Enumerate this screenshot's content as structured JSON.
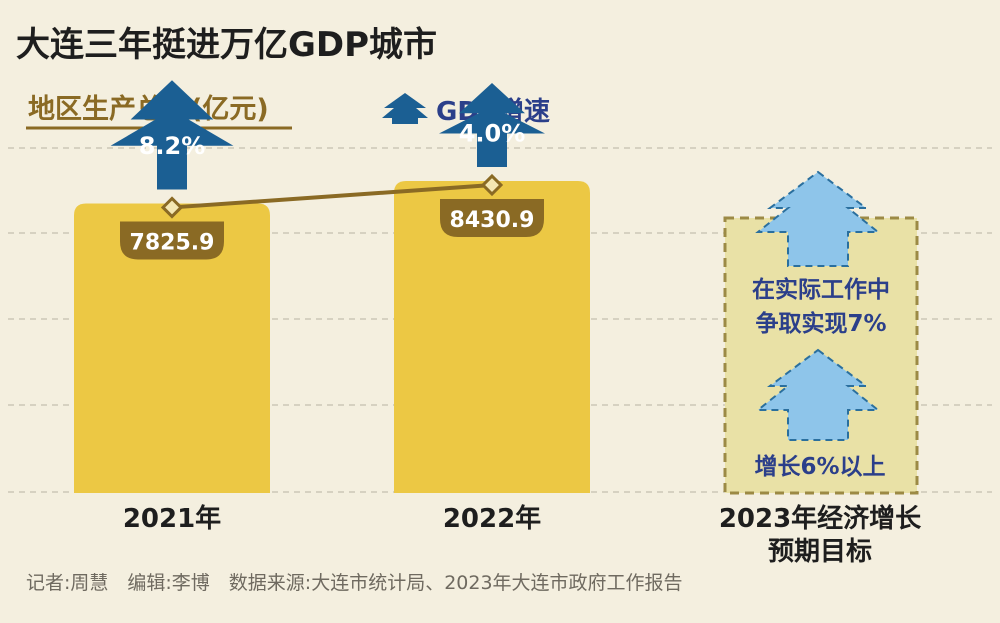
{
  "colors": {
    "background": "#f4efdf",
    "bar": "#ecc844",
    "line": "#8a6a24",
    "label_box": "#8a6a24",
    "arrow_dark": "#1b5f93",
    "arrow_light": "#2f8ac3",
    "target_arrow": "#8ec5ea",
    "target_box": "#e9e1a6",
    "target_border": "#9c8a45",
    "text_dark": "#1e1e1e",
    "text_blue": "#2b3f8a",
    "legend_text": "#8a6a24",
    "source_text": "#6f6a60"
  },
  "title": "大连三年挺进万亿GDP城市",
  "legend": {
    "bar_label": "地区生产总值(亿元)",
    "arrow_label": "GDP增速"
  },
  "chart_data": {
    "type": "bar",
    "categories": [
      "2021年",
      "2022年"
    ],
    "series": [
      {
        "name": "地区生产总值(亿元)",
        "values": [
          7825.9,
          8430.9
        ],
        "labels": [
          "7825.9",
          "8430.9"
        ]
      },
      {
        "name": "GDP增速",
        "values": [
          8.2,
          4.0
        ],
        "labels": [
          "8.2%",
          "4.0%"
        ]
      }
    ],
    "ylim": [
      0,
      10000
    ],
    "grid": true
  },
  "target": {
    "category_line1": "2023年经济增长",
    "category_line2": "预期目标",
    "text1_line1": "在实际工作中",
    "text1_line2": "争取实现7%",
    "text2": "增长6%以上"
  },
  "source": "记者:周慧　编辑:李博　数据来源:大连市统计局、2023年大连市政府工作报告"
}
